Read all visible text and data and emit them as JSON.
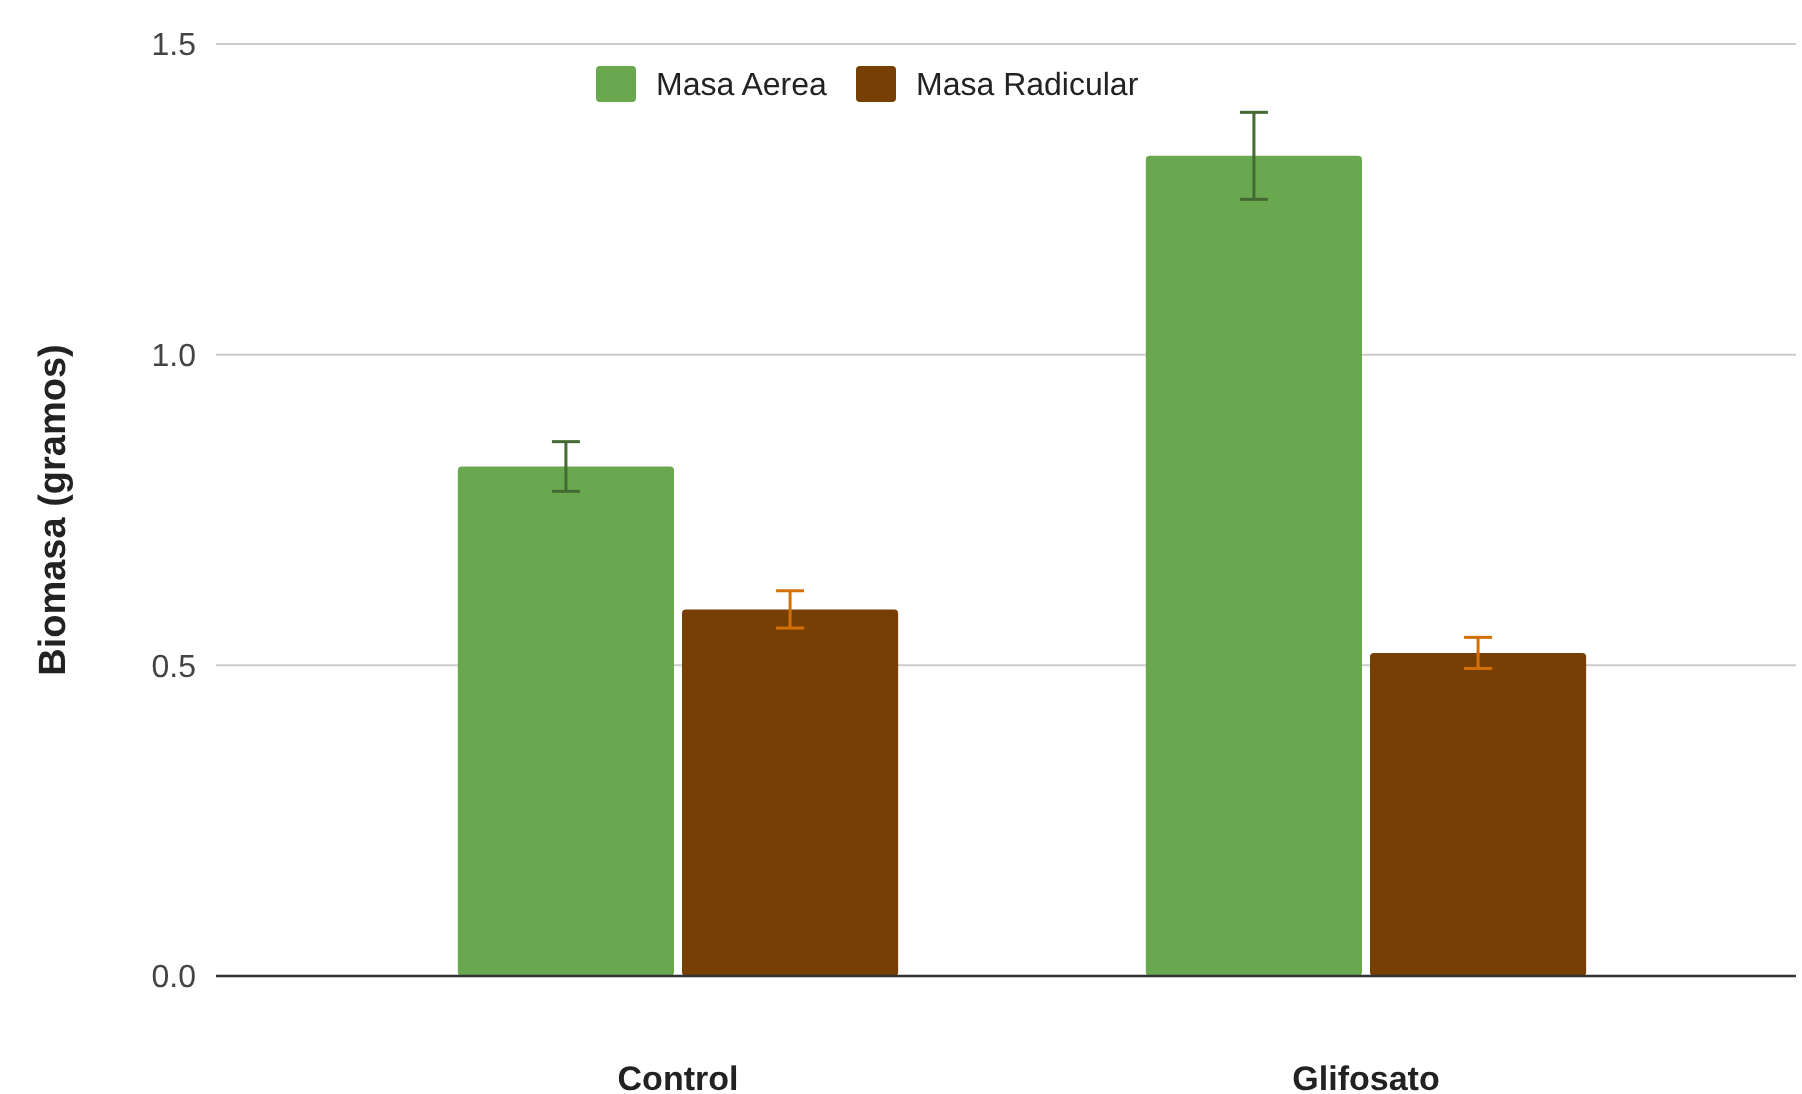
{
  "chart_data": {
    "type": "bar",
    "ylabel": "Biomasa (gramos)",
    "categories": [
      "Control",
      "Glifosato"
    ],
    "series": [
      {
        "name": "Masa Aerea",
        "color": "#6aa84f",
        "values": [
          0.82,
          1.32
        ],
        "errors": [
          0.04,
          0.07
        ]
      },
      {
        "name": "Masa Radicular",
        "color": "#783f04",
        "values": [
          0.59,
          0.52
        ],
        "errors": [
          0.03,
          0.025
        ]
      }
    ],
    "ylim": [
      0,
      1.5
    ],
    "yticks": [
      {
        "value": 0,
        "label": "0.0"
      },
      {
        "value": 0.5,
        "label": "0.5"
      },
      {
        "value": 1,
        "label": "1.0"
      },
      {
        "value": 1.5,
        "label": "1.5"
      }
    ],
    "grid": "y",
    "legend": "top"
  }
}
